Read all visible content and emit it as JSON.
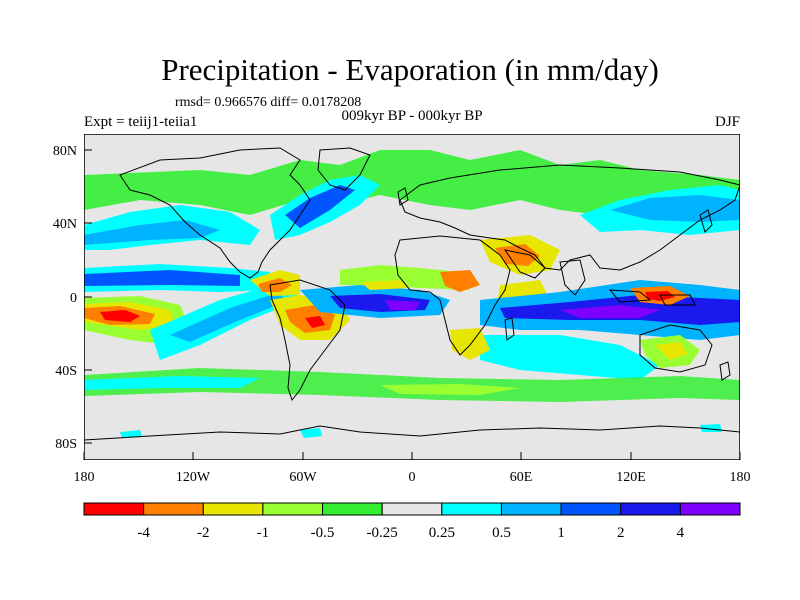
{
  "figure": {
    "title": "Precipitation - Evaporation (in mm/day)",
    "stats": "rmsd= 0.966576 diff= 0.0178208",
    "experiment": "Expt = teiij1-teiia1",
    "period": "009kyr BP - 000kyr BP",
    "season": "DJF"
  },
  "map": {
    "land_outline_color": "#000000",
    "background_color": "#e6e6e6",
    "lon_range": [
      -180,
      180
    ],
    "lat_range": [
      -90,
      90
    ],
    "x_ticks": [
      "180",
      "120W",
      "60W",
      "0",
      "60E",
      "120E",
      "180"
    ],
    "y_ticks": [
      "80N",
      "40N",
      "0",
      "40S",
      "80S"
    ]
  },
  "colorbar": {
    "colors": [
      "#ff0000",
      "#ff8000",
      "#e6e600",
      "#99ff33",
      "#33ee33",
      "#e6e6e6",
      "#00ffff",
      "#00b3ff",
      "#0055ff",
      "#1a1aee",
      "#8000ff"
    ],
    "labels": [
      "-4",
      "-2",
      "-1",
      "-0.5",
      "-0.25",
      "0.25",
      "0.5",
      "1",
      "2",
      "4"
    ]
  }
}
